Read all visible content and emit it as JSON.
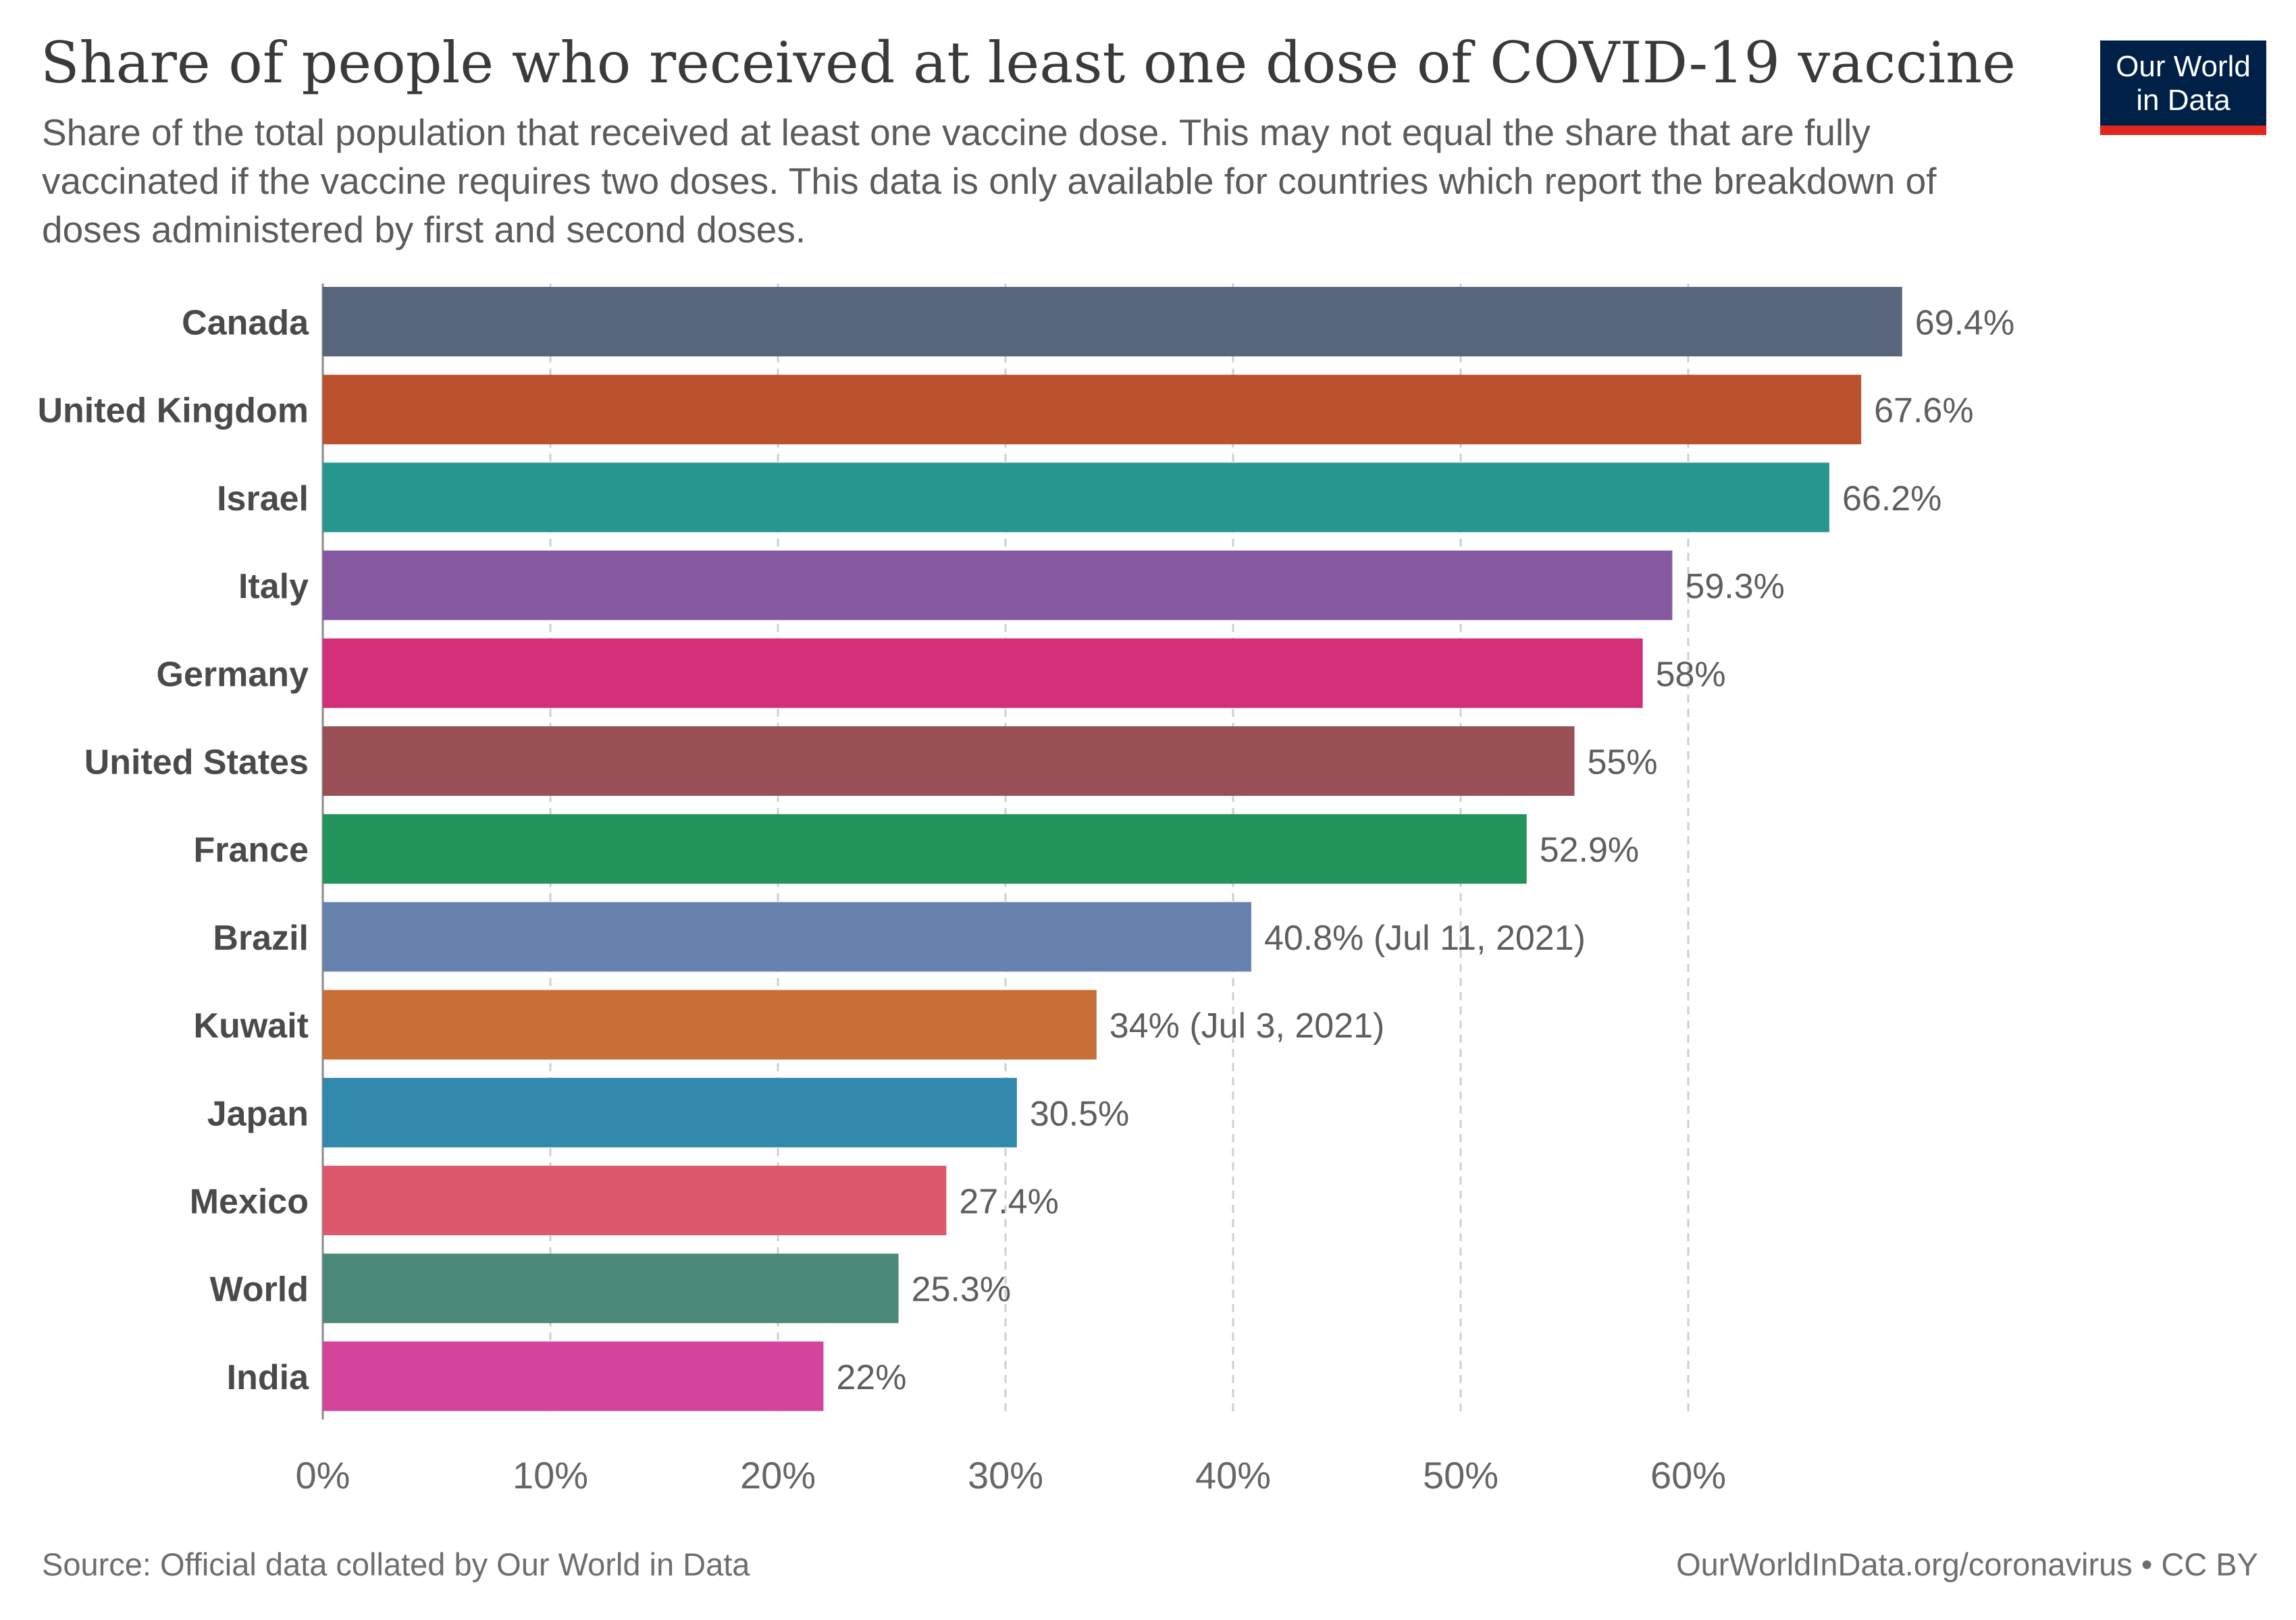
{
  "header": {
    "title": "Share of people who received at least one dose of COVID-19 vaccine",
    "subtitle": "Share of the total population that received at least one vaccine dose. This may not equal the share that are fully vaccinated if the vaccine requires two doses. This data is only available for countries which report the breakdown of doses administered by first and second doses."
  },
  "logo": {
    "line1": "Our World",
    "line2": "in Data",
    "bg_color": "#002147",
    "accent_color": "#e0261d"
  },
  "footer": {
    "source": "Source: Official data collated by Our World in Data",
    "credit": "OurWorldInData.org/coronavirus • CC BY"
  },
  "chart_data": {
    "type": "bar",
    "orientation": "horizontal",
    "title": "Share of people who received at least one dose of COVID-19 vaccine",
    "categories": [
      "Canada",
      "United Kingdom",
      "Israel",
      "Italy",
      "Germany",
      "United States",
      "France",
      "Brazil",
      "Kuwait",
      "Japan",
      "Mexico",
      "World",
      "India"
    ],
    "values": [
      69.4,
      67.6,
      66.2,
      59.3,
      58,
      55,
      52.9,
      40.8,
      34,
      30.5,
      27.4,
      25.3,
      22
    ],
    "data_labels": [
      "69.4%",
      "67.6%",
      "66.2%",
      "59.3%",
      "58%",
      "55%",
      "52.9%",
      "40.8% (Jul 11, 2021)",
      "34% (Jul 3, 2021)",
      "30.5%",
      "27.4%",
      "25.3%",
      "22%"
    ],
    "colors": [
      "#58667c",
      "#bc512d",
      "#26978e",
      "#8459a0",
      "#d32f78",
      "#984f56",
      "#22935b",
      "#6781ad",
      "#c76f37",
      "#3189ac",
      "#dc596b",
      "#4b8a7a",
      "#d4449a"
    ],
    "xlim": [
      0,
      70
    ],
    "xticks": [
      0,
      10,
      20,
      30,
      40,
      50,
      60
    ],
    "xtick_labels": [
      "0%",
      "10%",
      "20%",
      "30%",
      "40%",
      "50%",
      "60%"
    ],
    "grid": true,
    "grid_style": "dashed vertical"
  }
}
